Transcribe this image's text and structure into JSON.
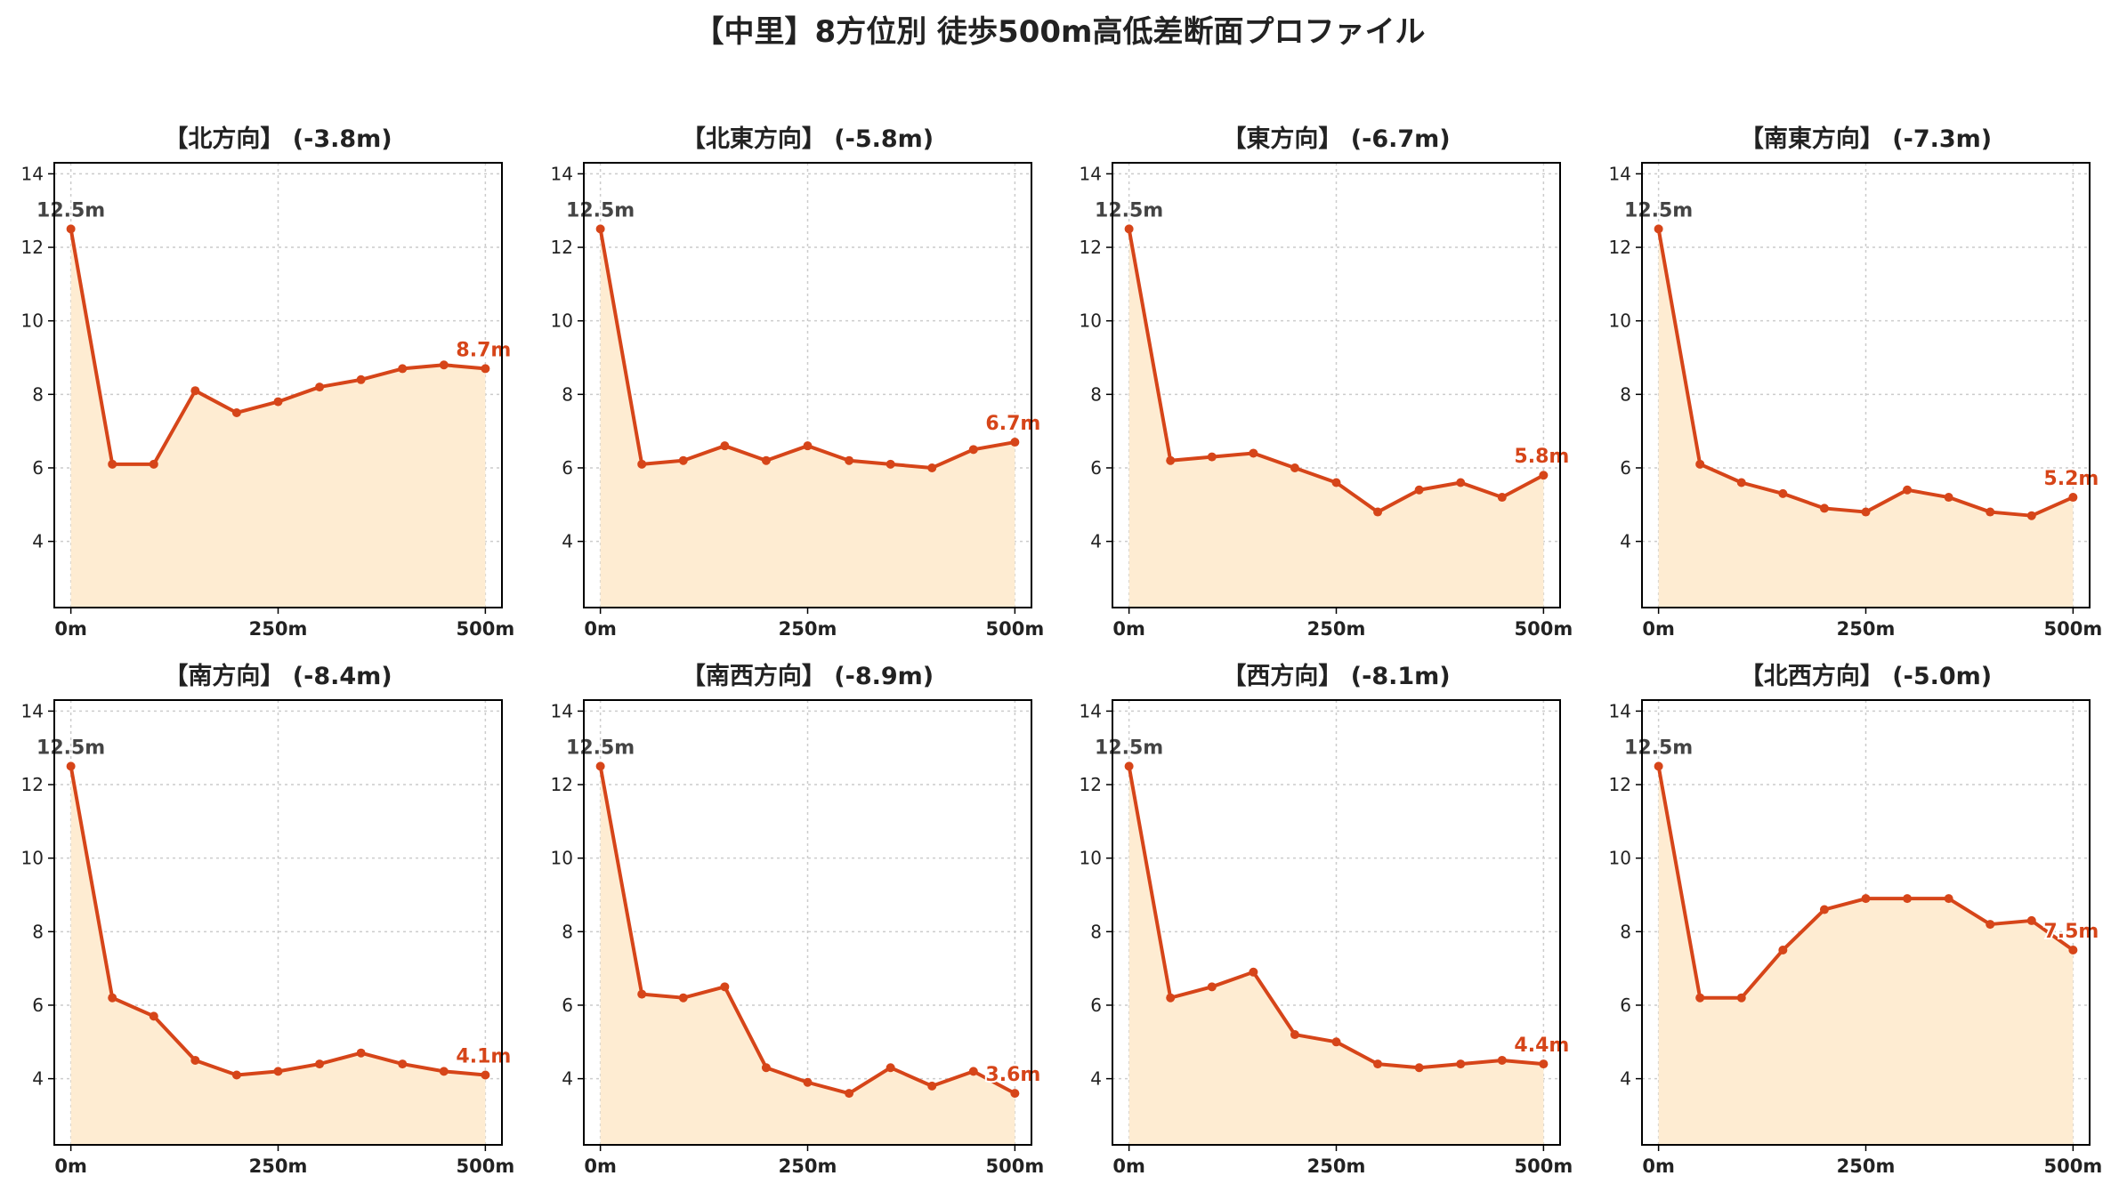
{
  "title": "【中里】8方位別 徒歩500m高低差断面プロファイル",
  "colors": {
    "line": "#d64519",
    "fill": "#feecd2",
    "grid": "#cccccc",
    "start_label": "#444444",
    "end_label": "#d64519"
  },
  "chart_data": [
    {
      "type": "area",
      "title": "【北方向】 (-3.8m)",
      "x": [
        0,
        50,
        100,
        150,
        200,
        250,
        300,
        350,
        400,
        450,
        500
      ],
      "y": [
        12.5,
        6.1,
        6.1,
        8.1,
        7.5,
        7.8,
        8.2,
        8.4,
        8.7,
        8.8,
        8.7
      ],
      "start_label": "12.5m",
      "end_label": "8.7m",
      "xticks": [
        "0m",
        "250m",
        "500m"
      ],
      "yticks": [
        4,
        6,
        8,
        10,
        12,
        14
      ],
      "ylim": [
        2.2,
        14.3
      ],
      "xlim": [
        -20,
        520
      ],
      "grid": true
    },
    {
      "type": "area",
      "title": "【北東方向】 (-5.8m)",
      "x": [
        0,
        50,
        100,
        150,
        200,
        250,
        300,
        350,
        400,
        450,
        500
      ],
      "y": [
        12.5,
        6.1,
        6.2,
        6.6,
        6.2,
        6.6,
        6.2,
        6.1,
        6.0,
        6.5,
        6.7
      ],
      "start_label": "12.5m",
      "end_label": "6.7m",
      "xticks": [
        "0m",
        "250m",
        "500m"
      ],
      "yticks": [
        4,
        6,
        8,
        10,
        12,
        14
      ],
      "ylim": [
        2.2,
        14.3
      ],
      "xlim": [
        -20,
        520
      ],
      "grid": true
    },
    {
      "type": "area",
      "title": "【東方向】 (-6.7m)",
      "x": [
        0,
        50,
        100,
        150,
        200,
        250,
        300,
        350,
        400,
        450,
        500
      ],
      "y": [
        12.5,
        6.2,
        6.3,
        6.4,
        6.0,
        5.6,
        4.8,
        5.4,
        5.6,
        5.2,
        5.8
      ],
      "start_label": "12.5m",
      "end_label": "5.8m",
      "xticks": [
        "0m",
        "250m",
        "500m"
      ],
      "yticks": [
        4,
        6,
        8,
        10,
        12,
        14
      ],
      "ylim": [
        2.2,
        14.3
      ],
      "xlim": [
        -20,
        520
      ],
      "grid": true
    },
    {
      "type": "area",
      "title": "【南東方向】 (-7.3m)",
      "x": [
        0,
        50,
        100,
        150,
        200,
        250,
        300,
        350,
        400,
        450,
        500
      ],
      "y": [
        12.5,
        6.1,
        5.6,
        5.3,
        4.9,
        4.8,
        5.4,
        5.2,
        4.8,
        4.7,
        5.2
      ],
      "start_label": "12.5m",
      "end_label": "5.2m",
      "xticks": [
        "0m",
        "250m",
        "500m"
      ],
      "yticks": [
        4,
        6,
        8,
        10,
        12,
        14
      ],
      "ylim": [
        2.2,
        14.3
      ],
      "xlim": [
        -20,
        520
      ],
      "grid": true
    },
    {
      "type": "area",
      "title": "【南方向】 (-8.4m)",
      "x": [
        0,
        50,
        100,
        150,
        200,
        250,
        300,
        350,
        400,
        450,
        500
      ],
      "y": [
        12.5,
        6.2,
        5.7,
        4.5,
        4.1,
        4.2,
        4.4,
        4.7,
        4.4,
        4.2,
        4.1
      ],
      "start_label": "12.5m",
      "end_label": "4.1m",
      "xticks": [
        "0m",
        "250m",
        "500m"
      ],
      "yticks": [
        4,
        6,
        8,
        10,
        12,
        14
      ],
      "ylim": [
        2.2,
        14.3
      ],
      "xlim": [
        -20,
        520
      ],
      "grid": true
    },
    {
      "type": "area",
      "title": "【南西方向】 (-8.9m)",
      "x": [
        0,
        50,
        100,
        150,
        200,
        250,
        300,
        350,
        400,
        450,
        500
      ],
      "y": [
        12.5,
        6.3,
        6.2,
        6.5,
        4.3,
        3.9,
        3.6,
        4.3,
        3.8,
        4.2,
        3.6
      ],
      "start_label": "12.5m",
      "end_label": "3.6m",
      "xticks": [
        "0m",
        "250m",
        "500m"
      ],
      "yticks": [
        4,
        6,
        8,
        10,
        12,
        14
      ],
      "ylim": [
        2.2,
        14.3
      ],
      "xlim": [
        -20,
        520
      ],
      "grid": true
    },
    {
      "type": "area",
      "title": "【西方向】 (-8.1m)",
      "x": [
        0,
        50,
        100,
        150,
        200,
        250,
        300,
        350,
        400,
        450,
        500
      ],
      "y": [
        12.5,
        6.2,
        6.5,
        6.9,
        5.2,
        5.0,
        4.4,
        4.3,
        4.4,
        4.5,
        4.4
      ],
      "start_label": "12.5m",
      "end_label": "4.4m",
      "xticks": [
        "0m",
        "250m",
        "500m"
      ],
      "yticks": [
        4,
        6,
        8,
        10,
        12,
        14
      ],
      "ylim": [
        2.2,
        14.3
      ],
      "xlim": [
        -20,
        520
      ],
      "grid": true
    },
    {
      "type": "area",
      "title": "【北西方向】 (-5.0m)",
      "x": [
        0,
        50,
        100,
        150,
        200,
        250,
        300,
        350,
        400,
        450,
        500
      ],
      "y": [
        12.5,
        6.2,
        6.2,
        7.5,
        8.6,
        8.9,
        8.9,
        8.9,
        8.2,
        8.3,
        7.5
      ],
      "start_label": "12.5m",
      "end_label": "7.5m",
      "xticks": [
        "0m",
        "250m",
        "500m"
      ],
      "yticks": [
        4,
        6,
        8,
        10,
        12,
        14
      ],
      "ylim": [
        2.2,
        14.3
      ],
      "xlim": [
        -20,
        520
      ],
      "grid": true
    }
  ]
}
